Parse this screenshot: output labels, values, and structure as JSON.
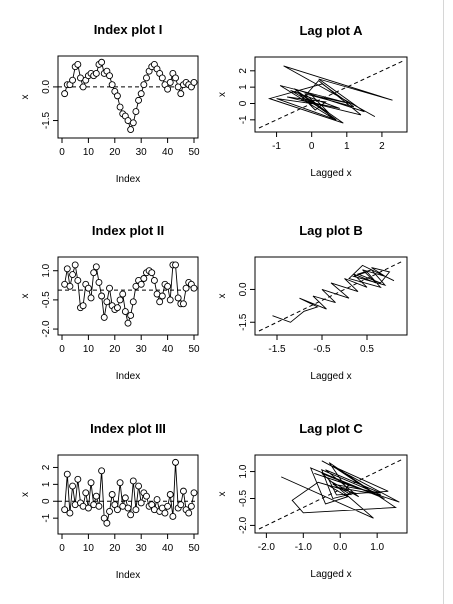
{
  "chart_data": [
    {
      "type": "scatter",
      "title": "Index plot I",
      "xlabel": "Index",
      "ylabel": "x",
      "xlim": [
        0,
        50
      ],
      "ylim": [
        -2.1,
        1.2
      ],
      "xticks": [
        "0",
        "10",
        "20",
        "30",
        "40",
        "50"
      ],
      "yticks": [
        "-1.5",
        "0.0"
      ],
      "reference_line": {
        "type": "horizontal",
        "y": 0,
        "style": "dashed"
      },
      "points": "connected-with-circles",
      "x": [
        1,
        2,
        3,
        4,
        5,
        6,
        7,
        8,
        9,
        10,
        11,
        12,
        13,
        14,
        15,
        16,
        17,
        18,
        19,
        20,
        21,
        22,
        23,
        24,
        25,
        26,
        27,
        28,
        29,
        30,
        31,
        32,
        33,
        34,
        35,
        36,
        37,
        38,
        39,
        40,
        41,
        42,
        43,
        44,
        45,
        46,
        47,
        48,
        49,
        50
      ],
      "y": [
        -0.3,
        0.1,
        0.1,
        0.3,
        0.9,
        1.0,
        0.4,
        0.0,
        0.3,
        0.5,
        0.6,
        0.5,
        0.6,
        1.0,
        1.1,
        0.6,
        0.7,
        0.5,
        0.1,
        -0.2,
        -0.4,
        -0.9,
        -1.2,
        -1.3,
        -1.5,
        -1.9,
        -1.6,
        -1.1,
        -0.6,
        -0.3,
        0.1,
        0.4,
        0.7,
        0.9,
        1.0,
        0.8,
        0.6,
        0.4,
        0.1,
        -0.1,
        0.2,
        0.6,
        0.4,
        0.0,
        -0.3,
        0.1,
        0.2,
        0.1,
        0.0,
        0.2
      ]
    },
    {
      "type": "lag",
      "title": "Lag plot A",
      "xlabel": "Lagged x",
      "ylabel": "x",
      "xlim": [
        -1.5,
        2.6
      ],
      "ylim": [
        -1.5,
        2.6
      ],
      "xticks": [
        "-1",
        "0",
        "1",
        "2"
      ],
      "yticks": [
        "-1",
        "0",
        "1",
        "2"
      ],
      "reference_line": {
        "type": "diagonal",
        "style": "dashed"
      },
      "points": "connected-path",
      "x": [
        1.8,
        -0.8,
        2.3,
        0.2,
        1.5,
        -0.5,
        0.9,
        -1.2,
        0.3,
        1.2,
        -0.2,
        0.6,
        -0.9,
        1.1,
        0.0,
        0.5,
        -0.6,
        0.8,
        -0.3,
        0.2,
        1.4,
        -0.7,
        0.4,
        0.1,
        -0.4,
        0.7,
        -1.0,
        0.3
      ],
      "y": [
        -0.8,
        2.3,
        0.2,
        1.5,
        -0.5,
        0.9,
        -1.2,
        0.3,
        1.2,
        -0.2,
        0.6,
        -0.9,
        1.1,
        0.0,
        0.5,
        -0.6,
        0.8,
        -0.3,
        0.2,
        1.4,
        -0.7,
        0.4,
        0.1,
        -0.4,
        0.7,
        -1.0,
        0.3,
        -0.1
      ]
    },
    {
      "type": "scatter",
      "title": "Index plot II",
      "xlabel": "Index",
      "ylabel": "x",
      "xlim": [
        0,
        50
      ],
      "ylim": [
        -2.1,
        1.5
      ],
      "xticks": [
        "0",
        "10",
        "20",
        "30",
        "40",
        "50"
      ],
      "yticks": [
        "-2.0",
        "-0.5",
        "1.0"
      ],
      "reference_line": {
        "type": "horizontal",
        "y": 0,
        "style": "dashed"
      },
      "points": "connected-with-circles",
      "x": [
        1,
        2,
        3,
        4,
        5,
        6,
        7,
        8,
        9,
        10,
        11,
        12,
        13,
        14,
        15,
        16,
        17,
        18,
        19,
        20,
        21,
        22,
        23,
        24,
        25,
        26,
        27,
        28,
        29,
        30,
        31,
        32,
        33,
        34,
        35,
        36,
        37,
        38,
        39,
        40,
        41,
        42,
        43,
        44,
        45,
        46,
        47,
        48,
        49,
        50
      ],
      "y": [
        0.3,
        1.1,
        0.2,
        0.8,
        1.3,
        0.5,
        -0.9,
        -0.8,
        0.3,
        0.1,
        -0.4,
        0.9,
        1.2,
        0.4,
        -0.3,
        -1.4,
        -0.6,
        0.1,
        -0.8,
        -1.0,
        -0.9,
        -0.5,
        -0.2,
        -1.1,
        -1.7,
        -1.3,
        -0.6,
        0.2,
        0.5,
        0.3,
        0.6,
        0.9,
        1.0,
        0.9,
        0.5,
        -0.2,
        -0.6,
        -0.3,
        0.3,
        0.2,
        -0.5,
        1.3,
        1.3,
        -0.4,
        -0.7,
        -0.7,
        0.1,
        0.4,
        0.3,
        0.1
      ]
    },
    {
      "type": "lag",
      "title": "Lag plot B",
      "xlabel": "Lagged x",
      "ylabel": "x",
      "xlim": [
        -1.9,
        1.3
      ],
      "ylim": [
        -1.9,
        1.3
      ],
      "xticks": [
        "-1.5",
        "-0.5",
        "0.5"
      ],
      "yticks": [
        "-1.5",
        "0.0"
      ],
      "reference_line": {
        "type": "diagonal",
        "style": "dashed"
      },
      "points": "connected-path",
      "x": [
        -1.6,
        -1.2,
        -0.9,
        -0.6,
        -1.0,
        -0.4,
        -0.7,
        -0.2,
        -0.5,
        0.1,
        -0.3,
        0.3,
        0.0,
        0.5,
        0.2,
        0.7,
        0.4,
        0.9,
        0.6,
        1.0,
        0.8,
        0.3,
        0.6,
        0.9,
        0.2,
        0.5,
        0.8,
        0.1,
        0.4,
        1.1
      ],
      "y": [
        -1.2,
        -1.5,
        -1.0,
        -0.8,
        -0.4,
        -0.9,
        -0.3,
        -0.6,
        0.0,
        -0.4,
        0.3,
        -0.1,
        0.5,
        0.1,
        0.7,
        0.3,
        0.9,
        0.6,
        1.0,
        0.8,
        0.3,
        0.7,
        0.9,
        0.2,
        0.6,
        0.8,
        0.1,
        0.5,
        1.1,
        0.4
      ]
    },
    {
      "type": "scatter",
      "title": "Index plot III",
      "xlabel": "Index",
      "ylabel": "x",
      "xlim": [
        0,
        50
      ],
      "ylim": [
        -1.7,
        2.5
      ],
      "xticks": [
        "0",
        "10",
        "20",
        "30",
        "40",
        "50"
      ],
      "yticks": [
        "-1",
        "0",
        "1",
        "2"
      ],
      "reference_line": {
        "type": "horizontal",
        "y": 0,
        "style": "dashed"
      },
      "points": "connected-with-circles",
      "x": [
        1,
        2,
        3,
        4,
        5,
        6,
        7,
        8,
        9,
        10,
        11,
        12,
        13,
        14,
        15,
        16,
        17,
        18,
        19,
        20,
        21,
        22,
        23,
        24,
        25,
        26,
        27,
        28,
        29,
        30,
        31,
        32,
        33,
        34,
        35,
        36,
        37,
        38,
        39,
        40,
        41,
        42,
        43,
        44,
        45,
        46,
        47,
        48,
        49,
        50
      ],
      "y": [
        -0.5,
        1.6,
        -0.7,
        0.9,
        -0.2,
        1.3,
        -0.1,
        -0.3,
        0.5,
        -0.4,
        1.1,
        -0.2,
        0.3,
        -0.3,
        1.8,
        -1.0,
        -1.3,
        -0.6,
        0.4,
        -0.2,
        -0.5,
        1.1,
        -0.3,
        0.2,
        -0.4,
        -0.8,
        1.2,
        -0.5,
        0.9,
        -0.1,
        0.5,
        0.3,
        -0.3,
        -0.2,
        -0.5,
        0.1,
        -0.6,
        -0.4,
        -0.7,
        -0.3,
        0.4,
        -0.9,
        2.3,
        -0.4,
        -0.2,
        0.6,
        -0.5,
        -0.7,
        -0.3,
        0.5
      ]
    },
    {
      "type": "lag",
      "title": "Lag plot C",
      "xlabel": "Lagged x",
      "ylabel": "x",
      "xlim": [
        -2.2,
        1.7
      ],
      "ylim": [
        -2.2,
        1.7
      ],
      "xticks": [
        "-2.0",
        "-1.0",
        "0.0",
        "1.0"
      ],
      "yticks": [
        "-2.0",
        "-0.5",
        "1.0"
      ],
      "reference_line": {
        "type": "diagonal",
        "style": "dashed"
      },
      "points": "connected-path",
      "x": [
        -0.5,
        1.6,
        -0.7,
        0.9,
        -0.2,
        1.3,
        -0.1,
        -0.3,
        0.5,
        -0.4,
        1.1,
        -0.2,
        0.3,
        -0.3,
        1.5,
        -1.0,
        -1.3,
        -0.6,
        0.4,
        -0.2,
        -0.5,
        1.1,
        -0.3,
        0.2,
        -0.4,
        -0.8,
        1.2,
        -0.5,
        0.9,
        -1.6
      ],
      "y": [
        1.6,
        -0.7,
        0.9,
        -0.2,
        1.3,
        -0.1,
        -0.3,
        0.5,
        -0.4,
        1.1,
        -0.2,
        0.3,
        -0.3,
        1.5,
        -1.0,
        -1.3,
        -0.6,
        0.4,
        -0.2,
        -0.5,
        1.1,
        -0.3,
        0.2,
        -0.4,
        -0.8,
        1.2,
        -0.5,
        0.9,
        -1.6,
        0.7
      ]
    }
  ]
}
